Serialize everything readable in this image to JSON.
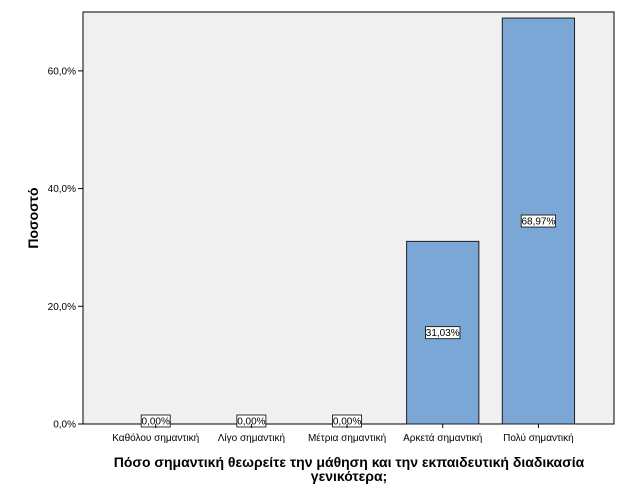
{
  "chart_data": {
    "type": "bar",
    "categories": [
      "Καθόλου σημαντική",
      "Λίγο σημαντική",
      "Μέτρια σημαντική",
      "Αρκετά σημαντική",
      "Πολύ σημαντική"
    ],
    "values": [
      0.0,
      0.0,
      0.0,
      31.03,
      68.97
    ],
    "data_labels": [
      "0,00%",
      "0,00%",
      "0,00%",
      "31,03%",
      "68,97%"
    ],
    "ylabel": "Ποσοστό",
    "xlabel": "Πόσο σημαντική θεωρείτε την μάθηση και την εκπαιδευτική διαδικασία γενικότερα;",
    "xlabel_lines": [
      "Πόσο σημαντική θεωρείτε την μάθηση και την εκπαιδευτική διαδικασία",
      "γενικότερα;"
    ],
    "yticks": [
      0,
      20,
      40,
      60
    ],
    "ytick_labels": [
      "0,0%",
      "20,0%",
      "40,0%",
      "60,0%"
    ],
    "ylim": [
      0,
      70
    ],
    "grid": false,
    "legend": "none",
    "colors": {
      "bar": "#7BA7D6",
      "bar_stroke": "#1e1e1e",
      "plot_bg": "#F0F0F0",
      "label_bg": "#ffffff"
    }
  }
}
